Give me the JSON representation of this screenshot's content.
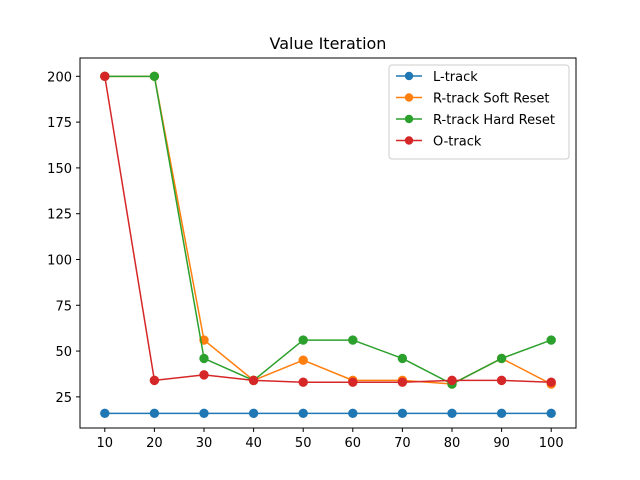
{
  "chart_data": {
    "type": "line",
    "title": "Value Iteration",
    "xlabel": "",
    "ylabel": "",
    "x": [
      10,
      20,
      30,
      40,
      50,
      60,
      70,
      80,
      90,
      100
    ],
    "xlim": [
      5,
      105
    ],
    "ylim": [
      8,
      210
    ],
    "xticks": [
      10,
      20,
      30,
      40,
      50,
      60,
      70,
      80,
      90,
      100
    ],
    "yticks": [
      25,
      50,
      75,
      100,
      125,
      150,
      175,
      200
    ],
    "grid": false,
    "legend_position": "top-right",
    "series": [
      {
        "name": "L-track",
        "color": "#1f77b4",
        "values": [
          16,
          16,
          16,
          16,
          16,
          16,
          16,
          16,
          16,
          16
        ]
      },
      {
        "name": "R-track Soft Reset",
        "color": "#ff7f0e",
        "values": [
          200,
          200,
          56,
          34,
          45,
          34,
          34,
          32,
          46,
          32
        ]
      },
      {
        "name": "R-track Hard Reset",
        "color": "#2ca02c",
        "values": [
          200,
          200,
          46,
          34,
          56,
          56,
          46,
          32,
          46,
          56
        ]
      },
      {
        "name": "O-track",
        "color": "#d62728",
        "values": [
          200,
          34,
          37,
          34,
          33,
          33,
          33,
          34,
          34,
          33
        ]
      }
    ]
  }
}
